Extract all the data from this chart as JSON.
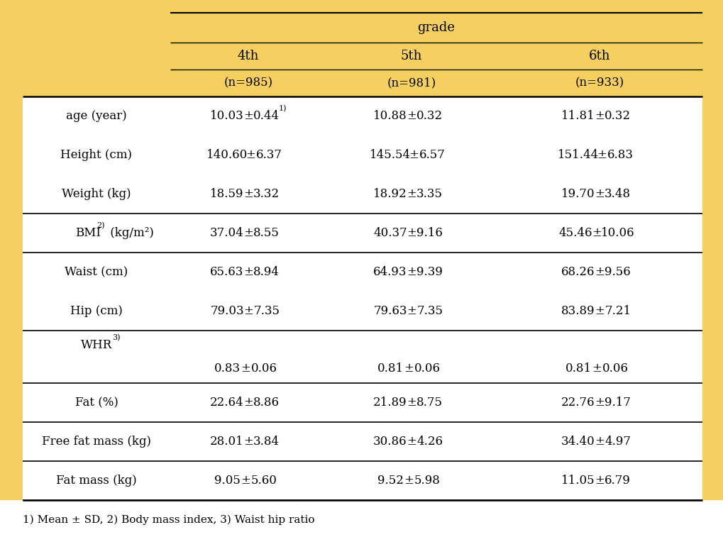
{
  "header_bg": "#F5D060",
  "body_bg": "#FFFFFF",
  "grade_label": "grade",
  "columns": [
    {
      "grade": "4th",
      "n": "(n=985)"
    },
    {
      "grade": "5th",
      "n": "(n=981)"
    },
    {
      "grade": "6th",
      "n": "(n=933)"
    }
  ],
  "rows": [
    {
      "label": "age (year)",
      "type": "normal",
      "values": [
        {
          "mean": "10.03",
          "sd": "0.44",
          "super": "1)"
        },
        {
          "mean": "10.88",
          "sd": "0.32",
          "super": ""
        },
        {
          "mean": "11.81",
          "sd": "0.32",
          "super": ""
        }
      ],
      "bottom_border": false
    },
    {
      "label": "Height (cm)",
      "type": "normal",
      "values": [
        {
          "mean": "140.60",
          "sd": "6.37",
          "super": ""
        },
        {
          "mean": "145.54",
          "sd": "6.57",
          "super": ""
        },
        {
          "mean": "151.44",
          "sd": "6.83",
          "super": ""
        }
      ],
      "bottom_border": false
    },
    {
      "label": "Weight (kg)",
      "type": "normal",
      "values": [
        {
          "mean": "18.59",
          "sd": "3.32",
          "super": ""
        },
        {
          "mean": "18.92",
          "sd": "3.35",
          "super": ""
        },
        {
          "mean": "19.70",
          "sd": "3.48",
          "super": ""
        }
      ],
      "bottom_border": true
    },
    {
      "label": "BMI",
      "label_super": "2)",
      "label_suffix": " (kg/m²)",
      "type": "bmi",
      "values": [
        {
          "mean": "37.04",
          "sd": "8.55",
          "super": ""
        },
        {
          "mean": "40.37",
          "sd": "9.16",
          "super": ""
        },
        {
          "mean": "45.46",
          "sd": "10.06",
          "super": ""
        }
      ],
      "bottom_border": true
    },
    {
      "label": "Waist (cm)",
      "type": "normal",
      "values": [
        {
          "mean": "65.63",
          "sd": "8.94",
          "super": ""
        },
        {
          "mean": "64.93",
          "sd": "9.39",
          "super": ""
        },
        {
          "mean": "68.26",
          "sd": "9.56",
          "super": ""
        }
      ],
      "bottom_border": false
    },
    {
      "label": "Hip (cm)",
      "type": "normal",
      "values": [
        {
          "mean": "79.03",
          "sd": "7.35",
          "super": ""
        },
        {
          "mean": "79.63",
          "sd": "7.35",
          "super": ""
        },
        {
          "mean": "83.89",
          "sd": "7.21",
          "super": ""
        }
      ],
      "bottom_border": true
    },
    {
      "label": "WHR",
      "label_super": "3)",
      "type": "whr",
      "values": [
        {
          "mean": "0.83",
          "sd": "0.06",
          "super": ""
        },
        {
          "mean": "0.81",
          "sd": "0.06",
          "super": ""
        },
        {
          "mean": "0.81",
          "sd": "0.06",
          "super": ""
        }
      ],
      "bottom_border": true
    },
    {
      "label": "Fat (%)",
      "type": "normal",
      "values": [
        {
          "mean": "22.64",
          "sd": "8.86",
          "super": ""
        },
        {
          "mean": "21.89",
          "sd": "8.75",
          "super": ""
        },
        {
          "mean": "22.76",
          "sd": "9.17",
          "super": ""
        }
      ],
      "bottom_border": true
    },
    {
      "label": "Free fat mass (kg)",
      "type": "normal",
      "values": [
        {
          "mean": "28.01",
          "sd": "3.84",
          "super": ""
        },
        {
          "mean": "30.86",
          "sd": "4.26",
          "super": ""
        },
        {
          "mean": "34.40",
          "sd": "4.97",
          "super": ""
        }
      ],
      "bottom_border": true
    },
    {
      "label": "Fat mass (kg)",
      "type": "normal",
      "values": [
        {
          "mean": "9.05",
          "sd": "5.60",
          "super": ""
        },
        {
          "mean": "9.52",
          "sd": "5.98",
          "super": ""
        },
        {
          "mean": "11.05",
          "sd": "6.79",
          "super": ""
        }
      ],
      "bottom_border": true
    }
  ],
  "footnote": "1) Mean ± SD, 2) Body mass index, 3) Waist hip ratio"
}
